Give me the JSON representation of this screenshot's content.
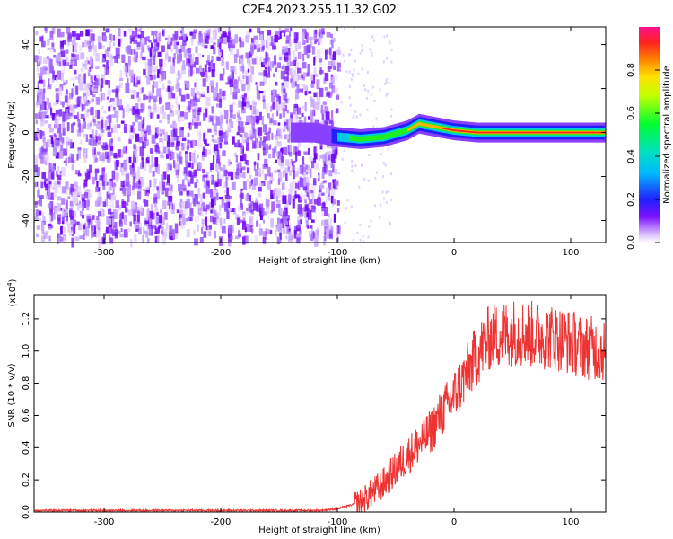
{
  "title": "C2E4.2023.255.11.32.G02",
  "chart_data": [
    {
      "type": "heatmap",
      "title": "C2E4.2023.255.11.32.G02",
      "xlabel": "Height of straight line (km)",
      "ylabel": "Frequency (Hz)",
      "xlim": [
        -360,
        130
      ],
      "ylim": [
        -50,
        48
      ],
      "xticks": [
        -300,
        -200,
        -100,
        0,
        100
      ],
      "yticks": [
        -40,
        -20,
        0,
        20,
        40
      ],
      "noise_region": [
        -360,
        -100
      ],
      "signal_trace": {
        "x": [
          -140,
          -120,
          -100,
          -80,
          -60,
          -40,
          -30,
          -20,
          0,
          20,
          40,
          60,
          80,
          100,
          130
        ],
        "y": [
          0,
          0,
          -2,
          -3,
          -2,
          1,
          4,
          3,
          1,
          0,
          0,
          0,
          0,
          0,
          0
        ]
      },
      "colorbar": {
        "label": "Normalized spectral amplitude",
        "range": [
          0,
          1
        ],
        "ticks": [
          0.0,
          0.2,
          0.4,
          0.6,
          0.8
        ]
      }
    },
    {
      "type": "line",
      "xlabel": "Height of straight line (km)",
      "ylabel": "SNR (10 * v/v)",
      "multiplier": "(x10^4)",
      "multiplier_base": "(x10",
      "multiplier_exp": "4",
      "multiplier_close": ")",
      "xlim": [
        -360,
        130
      ],
      "ylim": [
        0,
        1.35
      ],
      "xticks": [
        -300,
        -200,
        -100,
        0,
        100
      ],
      "yticks": [
        0.0,
        0.2,
        0.4,
        0.6,
        0.8,
        1.0,
        1.2
      ],
      "color": "#ee3333",
      "series": [
        {
          "x": [
            -360,
            -300,
            -200,
            -130,
            -115,
            -100,
            -80,
            -60,
            -40,
            -20,
            -10,
            0,
            10,
            20,
            30,
            50,
            70,
            90,
            110,
            130
          ],
          "y": [
            0.01,
            0.01,
            0.01,
            0.01,
            0.01,
            0.02,
            0.06,
            0.18,
            0.35,
            0.5,
            0.62,
            0.72,
            0.85,
            0.98,
            1.08,
            1.12,
            1.1,
            1.08,
            1.03,
            1.0
          ]
        }
      ]
    }
  ]
}
